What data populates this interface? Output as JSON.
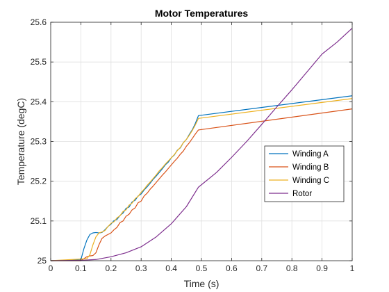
{
  "chart_data": {
    "type": "line",
    "title": "Motor Temperatures",
    "xlabel": "Time (s)",
    "ylabel": "Temperature (degC)",
    "xlim": [
      0,
      1
    ],
    "ylim": [
      25,
      25.6
    ],
    "x_ticks": [
      0,
      0.1,
      0.2,
      0.3,
      0.4,
      0.5,
      0.6,
      0.7,
      0.8,
      0.9,
      1
    ],
    "x_tick_labels": [
      "0",
      "0.1",
      "0.2",
      "0.3",
      "0.4",
      "0.5",
      "0.6",
      "0.7",
      "0.8",
      "0.9",
      "1"
    ],
    "y_ticks": [
      25,
      25.1,
      25.2,
      25.3,
      25.4,
      25.5,
      25.6
    ],
    "y_tick_labels": [
      "25",
      "25.1",
      "25.2",
      "25.3",
      "25.4",
      "25.5",
      "25.6"
    ],
    "grid": true,
    "legend_position": "middle-right",
    "series": [
      {
        "name": "Winding A",
        "color": "#0072BD",
        "x": [
          0,
          0.1,
          0.11,
          0.12,
          0.13,
          0.14,
          0.15,
          0.16,
          0.17,
          0.18,
          0.19,
          0.2,
          0.21,
          0.22,
          0.23,
          0.24,
          0.25,
          0.26,
          0.27,
          0.28,
          0.29,
          0.3,
          0.31,
          0.32,
          0.33,
          0.34,
          0.35,
          0.36,
          0.37,
          0.38,
          0.39,
          0.4,
          0.41,
          0.42,
          0.43,
          0.44,
          0.45,
          0.46,
          0.47,
          0.48,
          0.49,
          1.0
        ],
        "y": [
          25.0,
          25.002,
          25.03,
          25.052,
          25.066,
          25.07,
          25.071,
          25.07,
          25.071,
          25.078,
          25.086,
          25.092,
          25.101,
          25.104,
          25.114,
          25.12,
          25.132,
          25.135,
          25.148,
          25.152,
          25.163,
          25.168,
          25.178,
          25.186,
          25.195,
          25.205,
          25.213,
          25.222,
          25.231,
          25.241,
          25.248,
          25.259,
          25.266,
          25.278,
          25.284,
          25.297,
          25.305,
          25.318,
          25.33,
          25.346,
          25.365,
          25.415
        ]
      },
      {
        "name": "Winding B",
        "color": "#D95319",
        "x": [
          0,
          0.1,
          0.12,
          0.13,
          0.14,
          0.15,
          0.16,
          0.17,
          0.18,
          0.19,
          0.2,
          0.21,
          0.22,
          0.23,
          0.24,
          0.25,
          0.26,
          0.27,
          0.28,
          0.29,
          0.3,
          0.31,
          0.32,
          0.33,
          0.34,
          0.35,
          0.36,
          0.37,
          0.38,
          0.39,
          0.4,
          0.41,
          0.42,
          0.43,
          0.44,
          0.45,
          0.46,
          0.47,
          0.48,
          0.49,
          1.0
        ],
        "y": [
          25.0,
          25.0,
          25.01,
          25.012,
          25.013,
          25.02,
          25.04,
          25.056,
          25.062,
          25.066,
          25.07,
          25.078,
          25.084,
          25.096,
          25.1,
          25.112,
          25.117,
          25.128,
          25.133,
          25.146,
          25.15,
          25.163,
          25.17,
          25.18,
          25.188,
          25.197,
          25.206,
          25.215,
          25.223,
          25.232,
          25.241,
          25.25,
          25.258,
          25.268,
          25.276,
          25.288,
          25.297,
          25.308,
          25.319,
          25.329,
          25.382
        ]
      },
      {
        "name": "Winding C",
        "color": "#EDB120",
        "x": [
          0,
          0.12,
          0.13,
          0.14,
          0.15,
          0.16,
          0.17,
          0.18,
          0.19,
          0.2,
          0.21,
          0.22,
          0.23,
          0.24,
          0.25,
          0.26,
          0.27,
          0.28,
          0.29,
          0.3,
          0.31,
          0.32,
          0.33,
          0.34,
          0.35,
          0.36,
          0.37,
          0.38,
          0.39,
          0.4,
          0.41,
          0.42,
          0.43,
          0.44,
          0.45,
          0.46,
          0.47,
          0.48,
          0.49,
          1.0
        ],
        "y": [
          25.0,
          25.005,
          25.015,
          25.04,
          25.06,
          25.07,
          25.072,
          25.076,
          25.086,
          25.094,
          25.098,
          25.108,
          25.113,
          25.124,
          25.128,
          25.14,
          25.145,
          25.156,
          25.162,
          25.172,
          25.18,
          25.19,
          25.198,
          25.207,
          25.216,
          25.226,
          25.234,
          25.243,
          25.251,
          25.259,
          25.267,
          25.277,
          25.285,
          25.297,
          25.305,
          25.316,
          25.328,
          25.342,
          25.358,
          25.408
        ]
      },
      {
        "name": "Rotor",
        "color": "#7E2F8E",
        "x": [
          0,
          0.1,
          0.15,
          0.2,
          0.25,
          0.3,
          0.35,
          0.4,
          0.45,
          0.49,
          0.55,
          0.6,
          0.65,
          0.7,
          0.75,
          0.8,
          0.85,
          0.9,
          0.95,
          1.0
        ],
        "y": [
          25.0,
          25.001,
          25.003,
          25.01,
          25.02,
          25.035,
          25.06,
          25.093,
          25.136,
          25.185,
          25.222,
          25.26,
          25.3,
          25.343,
          25.387,
          25.43,
          25.475,
          25.52,
          25.55,
          25.585
        ]
      }
    ]
  }
}
